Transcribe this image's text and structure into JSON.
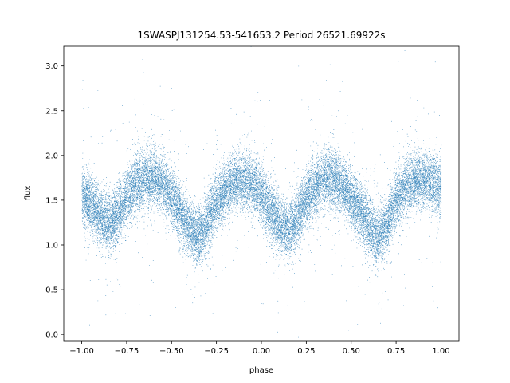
{
  "chart_data": {
    "type": "scatter",
    "title": "1SWASPJ131254.53-541653.2 Period 26521.69922s",
    "xlabel": "phase",
    "ylabel": "flux",
    "xlim": [
      -1.1,
      1.1
    ],
    "ylim": [
      -0.07,
      3.22
    ],
    "x_ticks": [
      -1.0,
      -0.75,
      -0.5,
      -0.25,
      0.0,
      0.25,
      0.5,
      0.75,
      1.0
    ],
    "x_tick_labels": [
      "−1.00",
      "−0.75",
      "−0.50",
      "−0.25",
      "0.00",
      "0.25",
      "0.50",
      "0.75",
      "1.00"
    ],
    "y_ticks": [
      0.0,
      0.5,
      1.0,
      1.5,
      2.0,
      2.5,
      3.0
    ],
    "y_tick_labels": [
      "0.0",
      "0.5",
      "1.0",
      "1.5",
      "2.0",
      "2.5",
      "3.0"
    ],
    "grid": false,
    "point_color": "#1f77b4",
    "curve_phase": [
      -1.0,
      -0.95,
      -0.9,
      -0.85,
      -0.8,
      -0.75,
      -0.7,
      -0.65,
      -0.6,
      -0.55,
      -0.5,
      -0.45,
      -0.4,
      -0.35,
      -0.3,
      -0.25,
      -0.2,
      -0.15,
      -0.1,
      -0.05,
      0.0,
      0.05,
      0.1,
      0.15,
      0.2,
      0.25,
      0.3,
      0.35,
      0.4,
      0.45,
      0.5,
      0.55,
      0.6,
      0.65,
      0.7,
      0.75,
      0.8,
      0.85,
      0.9,
      0.95,
      1.0
    ],
    "curve_flux": [
      1.55,
      1.45,
      1.32,
      1.22,
      1.35,
      1.55,
      1.68,
      1.74,
      1.75,
      1.68,
      1.52,
      1.35,
      1.18,
      1.08,
      1.25,
      1.48,
      1.62,
      1.7,
      1.72,
      1.67,
      1.55,
      1.38,
      1.25,
      1.15,
      1.3,
      1.52,
      1.66,
      1.73,
      1.74,
      1.66,
      1.52,
      1.38,
      1.2,
      1.08,
      1.25,
      1.5,
      1.65,
      1.72,
      1.73,
      1.7,
      1.62
    ],
    "core_scatter": 0.16,
    "n_points": 26000
  }
}
